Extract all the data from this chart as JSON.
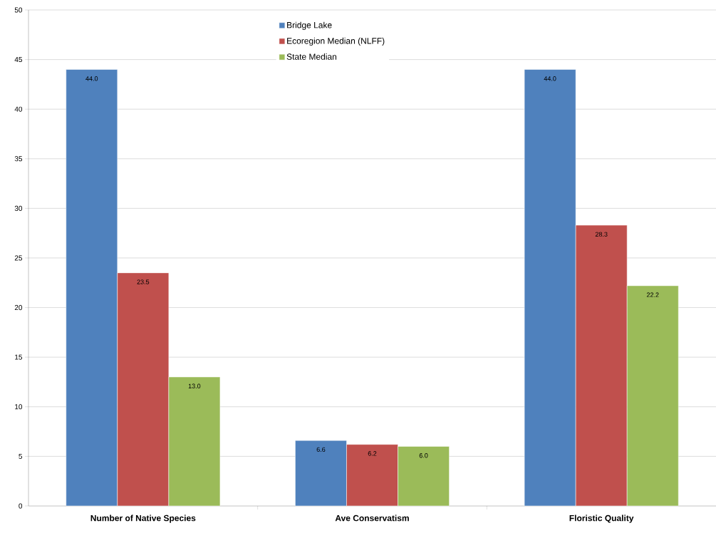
{
  "chart_data": {
    "type": "bar",
    "categories": [
      "Number of Native Species",
      "Ave Conservatism",
      "Floristic Quality"
    ],
    "series": [
      {
        "name": "Bridge Lake",
        "color": "#4f81bd",
        "values": [
          44.0,
          6.6,
          44.0
        ],
        "value_labels": [
          "44.0",
          "6.6",
          "44.0"
        ]
      },
      {
        "name": "Ecoregion Median (NLFF)",
        "color": "#c0504d",
        "values": [
          23.5,
          6.2,
          28.3
        ],
        "value_labels": [
          "23.5",
          "6.2",
          "28.3"
        ]
      },
      {
        "name": "State Median",
        "color": "#9bbb59",
        "values": [
          13.0,
          6.0,
          22.2
        ],
        "value_labels": [
          "13.0",
          "6.0",
          "22.2"
        ]
      }
    ],
    "ylim": [
      0,
      50
    ],
    "yticks": [
      0,
      5,
      10,
      15,
      20,
      25,
      30,
      35,
      40,
      45,
      50
    ],
    "grid": "y",
    "legend": "top"
  }
}
